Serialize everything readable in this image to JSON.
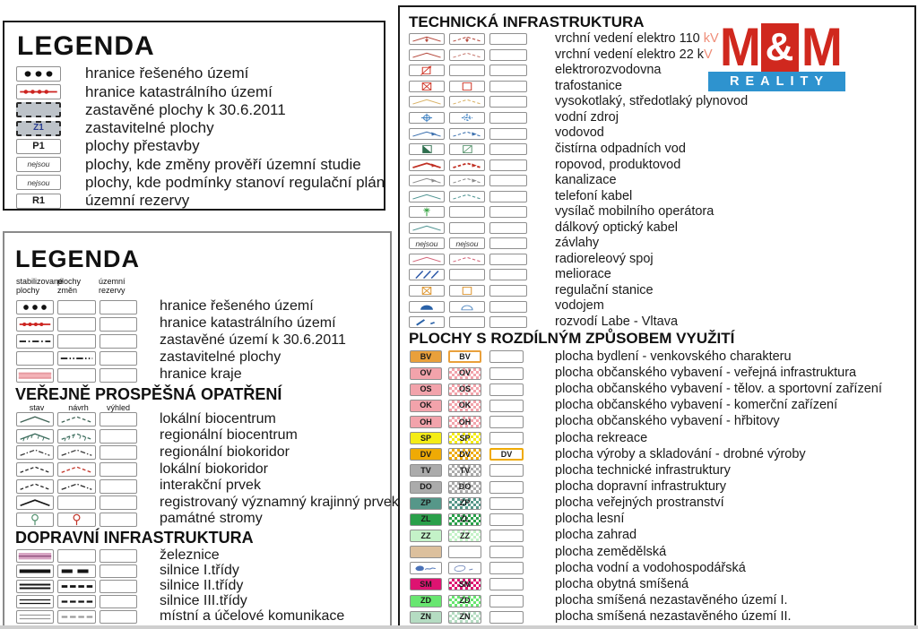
{
  "colors": {
    "label_text": "#1a1a1a",
    "overlap_text": "#ef8d78",
    "panel_border_dark": "#1a1a1a",
    "panel_border_gray": "#8a8a8a"
  },
  "logo": {
    "m1": "M",
    "amp": "&",
    "m2": "M",
    "reality": "REALITY",
    "red": "#d0281e",
    "blue": "#2e93cf"
  },
  "panelA": {
    "title": "LEGENDA",
    "rows": [
      {
        "label": "hranice řešeného území",
        "sym": {
          "t": "dots3"
        }
      },
      {
        "label": "hranice katastrálního území",
        "sym": {
          "t": "redline",
          "c": "#cc2420"
        }
      },
      {
        "label": "zastavěné plochy k 30.6.2011",
        "sym": {
          "t": "grayfill"
        }
      },
      {
        "label": "zastavitelné plochy",
        "sym": {
          "t": "grayfill",
          "text": "Z1",
          "tc": "#2a3d8f"
        }
      },
      {
        "label": "plochy přestavby",
        "sym": {
          "t": "code",
          "text": "P1"
        }
      },
      {
        "label": "plochy, kde změny prověří územní studie",
        "sym": {
          "t": "note",
          "text": "nejsou"
        }
      },
      {
        "label": "plochy, kde podmínky stanoví regulační plán",
        "sym": {
          "t": "note",
          "text": "nejsou"
        }
      },
      {
        "label": "územní rezervy",
        "sym": {
          "t": "code",
          "text": "R1"
        }
      }
    ]
  },
  "panelB": {
    "title": "LEGENDA",
    "col_headers": [
      "stabilizované\nplochy",
      "plochy\nzměn",
      "územní\nrezervy"
    ],
    "section1": {
      "rows": [
        {
          "label": "hranice řešeného území",
          "cols": [
            {
              "t": "dots3"
            },
            null,
            null
          ]
        },
        {
          "label": "hranice katastrálního území",
          "cols": [
            {
              "t": "redline",
              "c": "#cc2420"
            },
            null,
            null
          ]
        },
        {
          "label": "zastavěné území k 30.6.2011",
          "cols": [
            {
              "t": "dashdot"
            },
            null,
            null
          ]
        },
        {
          "label": "zastavitelné plochy",
          "cols": [
            null,
            {
              "t": "dashdotdot"
            },
            null
          ]
        },
        {
          "label": "hranice kraje",
          "cols": [
            {
              "t": "pinkband"
            },
            null,
            null
          ]
        }
      ]
    },
    "section2": {
      "title": "VEŘEJNĚ PROSPĚŠNÁ OPATŘENÍ",
      "col_headers": [
        "stav",
        "návrh",
        "výhled"
      ],
      "rows": [
        {
          "label": "lokální biocentrum",
          "cols": [
            {
              "t": "chev",
              "c": "#3f6355"
            },
            {
              "t": "chev",
              "c": "#3f6355",
              "d": 1
            },
            null
          ]
        },
        {
          "label": "regionální biocentrum",
          "cols": [
            {
              "t": "chev",
              "c": "#3d6e5e",
              "ticks": 1
            },
            {
              "t": "chev",
              "c": "#3d6e5e",
              "ticks": 1,
              "d": 1
            },
            null
          ]
        },
        {
          "label": "regionální biokoridor",
          "cols": [
            {
              "t": "chev",
              "c": "#3a3a3a",
              "dd": 1
            },
            {
              "t": "chev",
              "c": "#3a3a3a",
              "dd": 1
            },
            null
          ]
        },
        {
          "label": "lokální biokoridor",
          "cols": [
            {
              "t": "chev",
              "c": "#262626",
              "d": 1
            },
            {
              "t": "chev",
              "c": "#c23428",
              "d": 1
            },
            null
          ]
        },
        {
          "label": "interakční prvek",
          "cols": [
            {
              "t": "chev",
              "c": "#262626",
              "d": 1
            },
            {
              "t": "chev",
              "c": "#262626",
              "dd": 1
            },
            null
          ]
        },
        {
          "label": "registrovaný významný krajinný prvek",
          "cols": [
            {
              "t": "chev",
              "c": "#151515",
              "w": 1.8
            },
            null,
            null
          ]
        },
        {
          "label": "památné stromy",
          "cols": [
            {
              "t": "lolli",
              "c": "#4f8f6b"
            },
            {
              "t": "lolli",
              "c": "#c23428"
            },
            null
          ]
        }
      ]
    },
    "section3": {
      "title": "DOPRAVNÍ INFRASTRUKTURA",
      "rows": [
        {
          "label": "železnice",
          "cols": [
            {
              "t": "rail"
            },
            null,
            null
          ]
        },
        {
          "label": "silnice I.třídy",
          "cols": [
            {
              "t": "roadbar"
            },
            {
              "t": "roaddash2"
            },
            null
          ]
        },
        {
          "label": "silnice II.třídy",
          "cols": [
            {
              "t": "dbl",
              "c": "#151515",
              "w": 2.2
            },
            {
              "t": "dashes",
              "c": "#151515",
              "h": 3.2
            },
            null
          ]
        },
        {
          "label": "silnice III.třídy",
          "cols": [
            {
              "t": "dbl",
              "c": "#151515",
              "w": 1.5
            },
            {
              "t": "dashes",
              "c": "#151515",
              "h": 2.6
            },
            null
          ]
        },
        {
          "label": "místní a účelové komunikace",
          "cols": [
            {
              "t": "dbl",
              "c": "#9c9c9c",
              "w": 1.5
            },
            {
              "t": "dashes",
              "c": "#9c9c9c",
              "h": 2.6
            },
            null
          ]
        }
      ]
    }
  },
  "panelC": {
    "section1": {
      "title": "TECHNICKÁ INFRASTRUKTURA",
      "rows": [
        {
          "label": "vrchní vedení elektro 110 ",
          "tail": "kV",
          "cols": [
            {
              "t": "chev",
              "c": "#b5483c",
              "arrow": "down"
            },
            {
              "t": "chev",
              "c": "#b5483c",
              "arrow": "down",
              "d": 1
            },
            null
          ]
        },
        {
          "label": "vrchní vedení elektro 22 k",
          "tail": "V",
          "cols": [
            {
              "t": "chev",
              "c": "#b5483c"
            },
            {
              "t": "chev",
              "c": "#c87d74",
              "d": 1
            },
            null
          ]
        },
        {
          "label": "elektrorozvodovna",
          "cols": [
            {
              "t": "sqarrow",
              "c": "#d03a2c"
            },
            null,
            null
          ]
        },
        {
          "label": "trafostanice",
          "cols": [
            {
              "t": "sqx",
              "c": "#d03a2c"
            },
            {
              "t": "sqo",
              "c": "#d03a2c"
            },
            null
          ]
        },
        {
          "label": "vysokotlaký, středotlaký plynovod",
          "cols": [
            {
              "t": "chev",
              "c": "#d9b266"
            },
            {
              "t": "chev",
              "c": "#d9b266",
              "d": 1
            },
            null
          ]
        },
        {
          "label": "vodní zdroj",
          "cols": [
            {
              "t": "cross",
              "c": "#3a7ec0"
            },
            {
              "t": "cross",
              "c": "#3a7ec0",
              "d": 1
            },
            null
          ]
        },
        {
          "label": "vodovod",
          "cols": [
            {
              "t": "chev",
              "c": "#3a6fae",
              "arrow": "end"
            },
            {
              "t": "chev",
              "c": "#3a6fae",
              "arrow": "end",
              "d": 1
            },
            null
          ]
        },
        {
          "label": "čistírna odpadních vod",
          "cols": [
            {
              "t": "sqhalf",
              "c": "#2e6e4e"
            },
            {
              "t": "sqdl",
              "c": "#4e8e66"
            },
            null
          ]
        },
        {
          "label": "ropovod, produktovod",
          "cols": [
            {
              "t": "chev",
              "c": "#c03024",
              "arrow": "end",
              "w": 2.4
            },
            {
              "t": "chev",
              "c": "#c03024",
              "arrow": "end",
              "d": 1,
              "w": 2.4
            },
            null
          ]
        },
        {
          "label": "kanalizace",
          "cols": [
            {
              "t": "chev",
              "c": "#8c8c8c",
              "arrow": "end"
            },
            {
              "t": "chev",
              "c": "#8c8c8c",
              "arrow": "end",
              "d": 1
            },
            null
          ]
        },
        {
          "label": "telefoní kabel",
          "cols": [
            {
              "t": "chev",
              "c": "#4f9492"
            },
            {
              "t": "chev",
              "c": "#4f9492",
              "d": 1
            },
            null
          ]
        },
        {
          "label": "vysílač mobilního operátora",
          "cols": [
            {
              "t": "flower",
              "c": "#2fa03c"
            },
            null,
            null
          ]
        },
        {
          "label": "dálkový optický kabel",
          "cols": [
            {
              "t": "chev",
              "c": "#4f9492"
            },
            null,
            null
          ]
        },
        {
          "label": "závlahy",
          "cols": [
            {
              "t": "note",
              "text": "nejsou"
            },
            {
              "t": "note",
              "text": "nejsou"
            },
            null
          ]
        },
        {
          "label": "radioreleový spoj",
          "cols": [
            {
              "t": "chev",
              "c": "#d4667a"
            },
            {
              "t": "chev",
              "c": "#d4667a",
              "d": 1
            },
            null
          ]
        },
        {
          "label": "meliorace",
          "cols": [
            {
              "t": "hatch",
              "c": "#2c58a8"
            },
            null,
            null
          ]
        },
        {
          "label": "regulační stanice",
          "cols": [
            {
              "t": "sqx",
              "c": "#dc9632"
            },
            {
              "t": "sqo",
              "c": "#dc9632"
            },
            null
          ]
        },
        {
          "label": "vodojem",
          "cols": [
            {
              "t": "dome",
              "c": "#2a62a8"
            },
            {
              "t": "dome",
              "c": "#5a8ec4",
              "o": 1
            },
            null
          ]
        },
        {
          "label": "rozvodí Labe - Vltava",
          "cols": [
            {
              "t": "ddash",
              "c": "#2a62a8"
            },
            null,
            null
          ]
        }
      ]
    },
    "section2": {
      "title": "PLOCHY S ROZDÍLNÝM ZPŮSOBEM VYUŽITÍ",
      "rows": [
        {
          "label": "plocha bydlení - venkovského charakteru",
          "cols": [
            {
              "t": "fill",
              "c": "#e9a03b",
              "text": "BV"
            },
            {
              "t": "bordercode",
              "c": "#e9a03b",
              "text": "BV"
            },
            null
          ]
        },
        {
          "label": "plocha občanského vybavení - veřejná infrastruktura",
          "cols": [
            {
              "t": "fill",
              "c": "#f2a3ab",
              "text": "OV"
            },
            {
              "t": "checker",
              "c": "#f2a3ab",
              "text": "OV"
            },
            null
          ]
        },
        {
          "label": "plocha občanského vybavení - tělov. a sportovní zařízení",
          "cols": [
            {
              "t": "fill",
              "c": "#f2a3ab",
              "text": "OS"
            },
            {
              "t": "checker",
              "c": "#f2a3ab",
              "text": "OS"
            },
            null
          ]
        },
        {
          "label": "plocha občanského vybavení - komerční zařízení",
          "cols": [
            {
              "t": "fill",
              "c": "#f2a3ab",
              "text": "OK"
            },
            {
              "t": "checker",
              "c": "#f2a3ab",
              "text": "OK"
            },
            null
          ]
        },
        {
          "label": "plocha občanského vybavení - hřbitovy",
          "cols": [
            {
              "t": "fill",
              "c": "#f2a3ab",
              "text": "OH"
            },
            {
              "t": "checker",
              "c": "#f2a3ab",
              "text": "OH"
            },
            null
          ]
        },
        {
          "label": "plocha rekreace",
          "cols": [
            {
              "t": "fill",
              "c": "#f4ec16",
              "text": "SP"
            },
            {
              "t": "checker",
              "c": "#f4ec16",
              "text": "SP"
            },
            null
          ]
        },
        {
          "label": "plocha výroby a skladování - drobné výroby",
          "cols": [
            {
              "t": "fill",
              "c": "#efaa05",
              "text": "DV"
            },
            {
              "t": "checker",
              "c": "#efaa05",
              "text": "DV"
            },
            {
              "t": "bordercode",
              "c": "#efaa05",
              "text": "DV"
            }
          ]
        },
        {
          "label": "plocha technické infrastruktury",
          "cols": [
            {
              "t": "fill",
              "c": "#ababab",
              "text": "TV"
            },
            {
              "t": "checker",
              "c": "#ababab",
              "text": "TV"
            },
            null
          ]
        },
        {
          "label": "plocha dopravní infrastruktury",
          "cols": [
            {
              "t": "fill",
              "c": "#ababab",
              "text": "DO"
            },
            {
              "t": "checker",
              "c": "#ababab",
              "text": "DO"
            },
            null
          ]
        },
        {
          "label": "plocha veřejných prostranství",
          "cols": [
            {
              "t": "fill",
              "c": "#569789",
              "text": "ZP"
            },
            {
              "t": "checker",
              "c": "#569789",
              "text": "ZP"
            },
            null
          ]
        },
        {
          "label": "plocha lesní",
          "cols": [
            {
              "t": "fill",
              "c": "#2aa04a",
              "text": "ZL"
            },
            {
              "t": "checker",
              "c": "#2aa04a",
              "text": "ZL"
            },
            null
          ]
        },
        {
          "label": "plocha zahrad",
          "cols": [
            {
              "t": "fill",
              "c": "#c4f2c8",
              "text": "ZZ"
            },
            {
              "t": "checker",
              "c": "#c4f2c8",
              "text": "ZZ"
            },
            null
          ]
        },
        {
          "label": "plocha zemědělská",
          "cols": [
            {
              "t": "fill",
              "c": "#dcc09d"
            },
            null,
            null
          ]
        },
        {
          "label": "plocha vodní a vodohospodářská",
          "cols": [
            {
              "t": "blobf"
            },
            {
              "t": "blobo"
            },
            null
          ]
        },
        {
          "label": "plocha obytná smíšená",
          "cols": [
            {
              "t": "fill",
              "c": "#de1371",
              "text": "SM"
            },
            {
              "t": "checker",
              "c": "#de1371",
              "text": "SM"
            },
            null
          ]
        },
        {
          "label": "plocha smíšená nezastavěného území I.",
          "cols": [
            {
              "t": "fill",
              "c": "#68e670",
              "text": "ZD"
            },
            {
              "t": "checker",
              "c": "#68e670",
              "text": "ZD"
            },
            null
          ]
        },
        {
          "label": "plocha smíšená nezastavěného území II.",
          "cols": [
            {
              "t": "fill",
              "c": "#b5dcc2",
              "text": "ZN"
            },
            {
              "t": "checker",
              "c": "#b5dcc2",
              "text": "ZN"
            },
            null
          ]
        }
      ]
    }
  }
}
